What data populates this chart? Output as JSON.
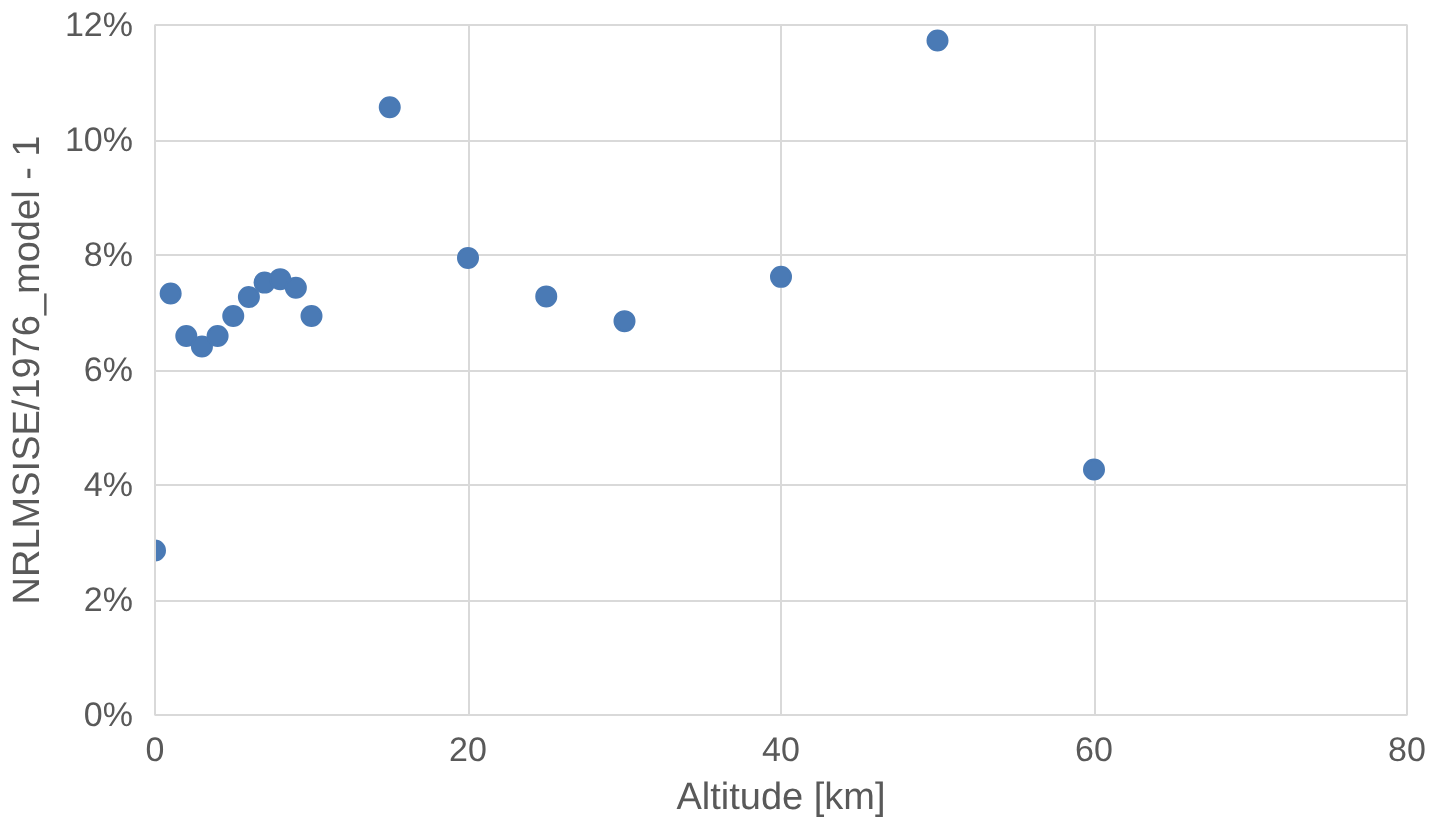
{
  "chart_data": {
    "type": "scatter",
    "xlabel": "Altitude [km]",
    "ylabel": "NRLMSISE/1976_model - 1",
    "x": [
      0,
      1,
      2,
      3,
      4,
      5,
      6,
      7,
      8,
      9,
      10,
      15,
      20,
      25,
      30,
      40,
      50,
      60
    ],
    "series": [
      {
        "color": "#4a7ab5",
        "values": [
          2.86,
          7.33,
          6.59,
          6.41,
          6.59,
          6.94,
          7.27,
          7.52,
          7.58,
          7.43,
          6.94,
          10.57,
          7.95,
          7.28,
          6.85,
          7.62,
          11.73,
          4.27
        ]
      }
    ],
    "xlim": [
      0,
      80
    ],
    "xticks": [
      0,
      20,
      40,
      60,
      80
    ],
    "ylim": [
      0,
      12
    ],
    "yticks": [
      {
        "value": 0,
        "label": "0%"
      },
      {
        "value": 2,
        "label": "2%"
      },
      {
        "value": 4,
        "label": "4%"
      },
      {
        "value": 6,
        "label": "6%"
      },
      {
        "value": 8,
        "label": "8%"
      },
      {
        "value": 10,
        "label": "10%"
      },
      {
        "value": 12,
        "label": "12%"
      }
    ],
    "grid": true,
    "marker": "circle"
  }
}
